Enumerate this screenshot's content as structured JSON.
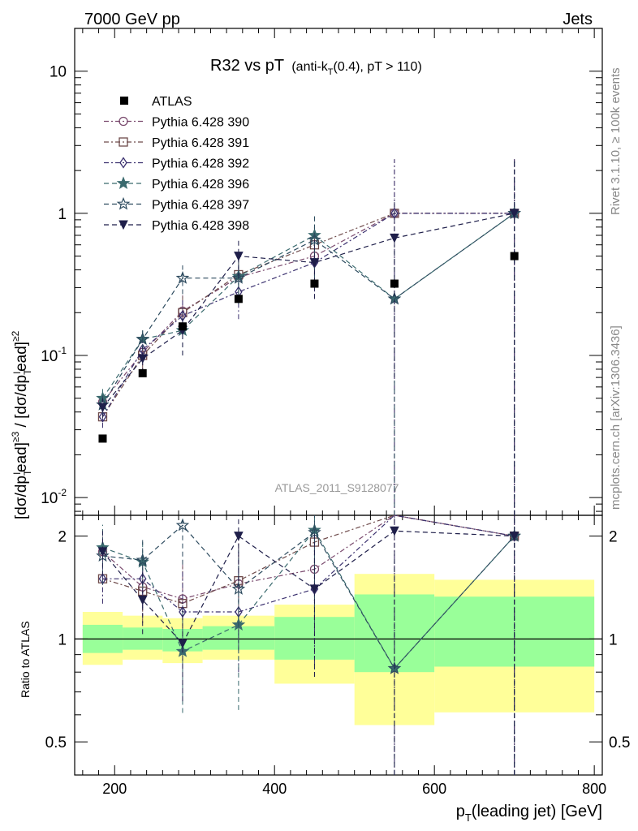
{
  "header": {
    "left": "7000 GeV pp",
    "right": "Jets",
    "side_top": "Rivet 3.1.10, ≥ 100k events",
    "side_bottom": "mcplots.cern.ch [arXiv:1306.3436]"
  },
  "chart_data": {
    "type": "line",
    "title_main": "R32 vs pT",
    "title_sub_a": "(anti-k",
    "title_sub_T": "T",
    "title_sub_b": "(0.4), pT > 110)",
    "analysis_label": "ATLAS_2011_S9128077",
    "x": [
      185,
      235,
      285,
      355,
      450,
      550,
      700
    ],
    "xlim": [
      150,
      810
    ],
    "xticks": [
      "200",
      "400",
      "600",
      "800"
    ],
    "xlabel_p": "p",
    "xlabel_T": "T",
    "xlabel_rest": "(leading jet) [GeV]",
    "ylabel": "[dσ/dp ead]≥3 / [dσ/dp ead]≥2",
    "ylabel_parts": {
      "a": "[dσ/dp",
      "sub1": "T",
      "sup1": "l",
      "b": "ead]",
      "sup2": "≥3",
      "c": " / [dσ/dp",
      "sub3": "T",
      "sup3": "l",
      "d": "ead]",
      "sup4": "≥2"
    },
    "ylim": [
      0.0075,
      20
    ],
    "yscale": "log",
    "yticks": [
      {
        "base": "10",
        "exp": "-2"
      },
      {
        "base": "10",
        "exp": "-1"
      },
      {
        "base": "1",
        "exp": ""
      },
      {
        "base": "10",
        "exp": ""
      }
    ],
    "ratio_ylabel": "Ratio to ATLAS",
    "ratio_ylim": [
      0.4,
      2.3
    ],
    "ratio_yticks": [
      "0.5",
      "1",
      "2"
    ],
    "data": {
      "name": "ATLAS",
      "values": [
        0.026,
        0.075,
        0.16,
        0.25,
        0.32,
        0.32,
        0.5
      ]
    },
    "band_bins": [
      {
        "lo": 160,
        "hi": 210,
        "y_lo": 0.84,
        "y_hi": 1.2,
        "g_lo": 0.91,
        "g_hi": 1.1
      },
      {
        "lo": 210,
        "hi": 260,
        "y_lo": 0.87,
        "y_hi": 1.17,
        "g_lo": 0.93,
        "g_hi": 1.08
      },
      {
        "lo": 260,
        "hi": 310,
        "y_lo": 0.85,
        "y_hi": 1.15,
        "g_lo": 0.92,
        "g_hi": 1.07
      },
      {
        "lo": 310,
        "hi": 400,
        "y_lo": 0.87,
        "y_hi": 1.17,
        "g_lo": 0.93,
        "g_hi": 1.09
      },
      {
        "lo": 400,
        "hi": 500,
        "y_lo": 0.74,
        "y_hi": 1.26,
        "g_lo": 0.87,
        "g_hi": 1.16
      },
      {
        "lo": 500,
        "hi": 600,
        "y_lo": 0.56,
        "y_hi": 1.55,
        "g_lo": 0.8,
        "g_hi": 1.35
      },
      {
        "lo": 600,
        "hi": 800,
        "y_lo": 0.61,
        "y_hi": 1.49,
        "g_lo": 0.83,
        "g_hi": 1.33
      }
    ],
    "series": [
      {
        "name": "Pythia 6.428 390",
        "marker": "circle",
        "color": "#7a4a6e",
        "dash": "6,3,2,3",
        "values": [
          0.047,
          0.105,
          0.205,
          0.355,
          0.5,
          1.0,
          1.0
        ],
        "err": [
          0.008,
          0.02,
          0.06,
          0.12,
          0.2,
          1.4,
          1.4
        ],
        "ratio": [
          1.8,
          1.42,
          1.31,
          1.45,
          1.6,
          3.1,
          2.0
        ]
      },
      {
        "name": "Pythia 6.428 391",
        "marker": "square",
        "color": "#6e4a4a",
        "dash": "6,3,2,3",
        "values": [
          0.037,
          0.1,
          0.2,
          0.37,
          0.6,
          1.0,
          1.0
        ],
        "err": [
          0.006,
          0.02,
          0.06,
          0.12,
          0.2,
          1.4,
          1.4
        ],
        "ratio": [
          1.5,
          1.38,
          1.27,
          1.48,
          1.92,
          3.1,
          2.0
        ]
      },
      {
        "name": "Pythia 6.428 392",
        "marker": "diamond",
        "color": "#3c3270",
        "dash": "6,3,2,3",
        "values": [
          0.037,
          0.11,
          0.19,
          0.28,
          0.45,
          1.0,
          1.0
        ],
        "err": [
          0.006,
          0.02,
          0.06,
          0.1,
          0.2,
          1.4,
          1.4
        ],
        "ratio": [
          1.5,
          1.5,
          1.2,
          1.2,
          1.4,
          3.1,
          2.0
        ]
      },
      {
        "name": "Pythia 6.428 396",
        "marker": "star",
        "color": "#3a6a6e",
        "dash": "6,4",
        "values": [
          0.05,
          0.13,
          0.15,
          0.36,
          0.7,
          0.25,
          1.0
        ],
        "err": [
          0.008,
          0.02,
          0.05,
          0.12,
          0.3,
          0.3,
          1.4
        ],
        "ratio": [
          1.85,
          1.68,
          0.92,
          1.1,
          2.08,
          0.82,
          2.0
        ]
      },
      {
        "name": "Pythia 6.428 397",
        "marker": "star-open",
        "color": "#2c4a5e",
        "dash": "6,4",
        "values": [
          0.045,
          0.13,
          0.35,
          0.35,
          0.65,
          0.25,
          1.0
        ],
        "err": [
          0.008,
          0.02,
          0.08,
          0.12,
          0.3,
          0.3,
          1.4
        ],
        "ratio": [
          1.75,
          1.7,
          2.15,
          1.4,
          2.05,
          0.82,
          2.0
        ]
      },
      {
        "name": "Pythia 6.428 398",
        "marker": "triangle-down",
        "color": "#1f1f4a",
        "dash": "6,4",
        "values": [
          0.043,
          0.095,
          0.15,
          0.5,
          0.45,
          0.67,
          1.0
        ],
        "err": [
          0.007,
          0.02,
          0.05,
          0.15,
          0.2,
          0.6,
          1.4
        ],
        "ratio": [
          1.8,
          1.3,
          0.97,
          2.0,
          1.4,
          2.07,
          2.0
        ]
      }
    ]
  }
}
